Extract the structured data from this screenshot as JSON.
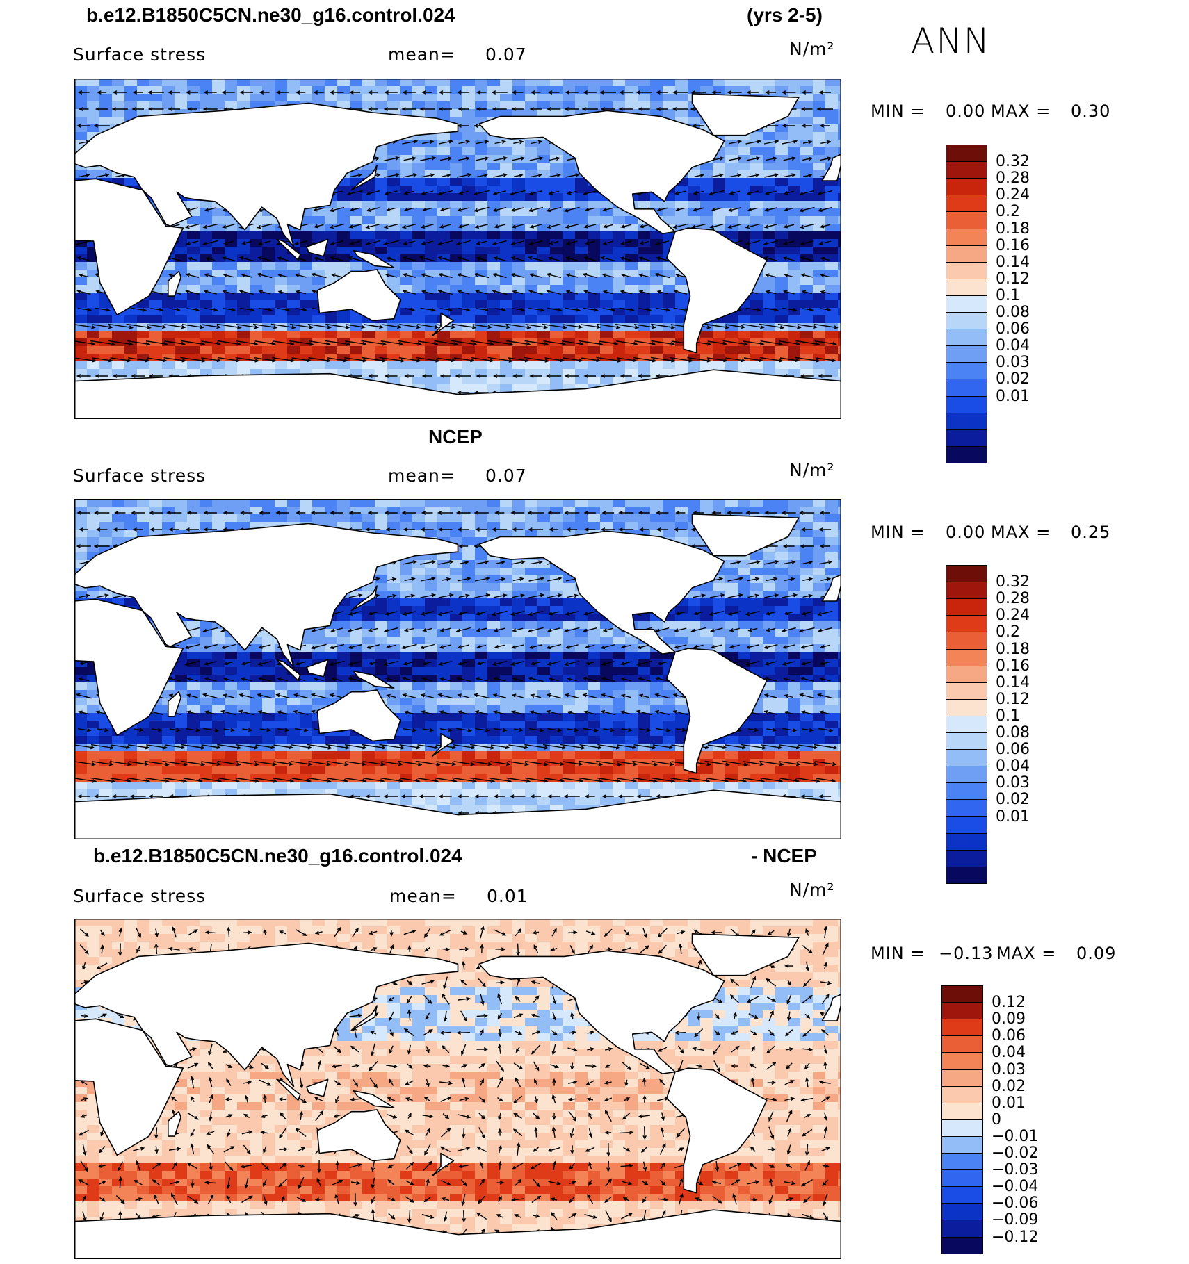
{
  "season": "ANN",
  "colors": {
    "abs": [
      "#08085e",
      "#0b1d9c",
      "#0b33c6",
      "#1a4de6",
      "#3166f0",
      "#4c83f4",
      "#6e9ff5",
      "#93bdf7",
      "#b7d6f8",
      "#d6e8fb",
      "#fbe3cf",
      "#fac9ae",
      "#f6a783",
      "#f28458",
      "#ea5f35",
      "#e03b18",
      "#c9240c",
      "#9e160c",
      "#6e0e08"
    ],
    "diff": [
      "#08085e",
      "#0b1d9c",
      "#0b33c6",
      "#1a4de6",
      "#3166f0",
      "#4c83f4",
      "#93bdf7",
      "#d6e8fb",
      "#fbe3cf",
      "#fac9ae",
      "#f6a783",
      "#f28458",
      "#ea5f35",
      "#e03b18",
      "#9e160c",
      "#6e0e08"
    ]
  },
  "panels": [
    {
      "title_left": "b.e12.B1850C5CN.ne30_g16.control.024",
      "title_right": "(yrs 2-5)",
      "title_center": "",
      "variable": "Surface stress",
      "mean_label": "mean=",
      "mean_value": "0.07",
      "units": "N/m²",
      "min_label": "MIN =",
      "min_value": "0.00",
      "max_label": "MAX =",
      "max_value": "0.30",
      "colorbar": [
        "0.32",
        "0.28",
        "0.24",
        "0.2",
        "0.18",
        "0.16",
        "0.14",
        "0.12",
        "0.1",
        "0.08",
        "0.06",
        "0.04",
        "0.03",
        "0.02",
        "0.01"
      ],
      "mode": "model"
    },
    {
      "title_left": "",
      "title_right": "",
      "title_center": "NCEP",
      "variable": "Surface stress",
      "mean_label": "mean=",
      "mean_value": "0.07",
      "units": "N/m²",
      "min_label": "MIN =",
      "min_value": "0.00",
      "max_label": "MAX =",
      "max_value": "0.25",
      "colorbar": [
        "0.32",
        "0.28",
        "0.24",
        "0.2",
        "0.18",
        "0.16",
        "0.14",
        "0.12",
        "0.1",
        "0.08",
        "0.06",
        "0.04",
        "0.03",
        "0.02",
        "0.01"
      ],
      "mode": "obs"
    },
    {
      "title_left": "b.e12.B1850C5CN.ne30_g16.control.024",
      "title_right": "- NCEP",
      "title_center": "",
      "variable": "Surface stress",
      "mean_label": "mean=",
      "mean_value": "0.01",
      "units": "N/m²",
      "min_label": "MIN =",
      "min_value": "−0.13",
      "max_label": "MAX =",
      "max_value": "0.09",
      "colorbar": [
        "0.12",
        "0.09",
        "0.06",
        "0.04",
        "0.03",
        "0.02",
        "0.01",
        "0",
        "−0.01",
        "−0.02",
        "−0.03",
        "−0.04",
        "−0.06",
        "−0.09",
        "−0.12"
      ],
      "mode": "diff"
    }
  ]
}
